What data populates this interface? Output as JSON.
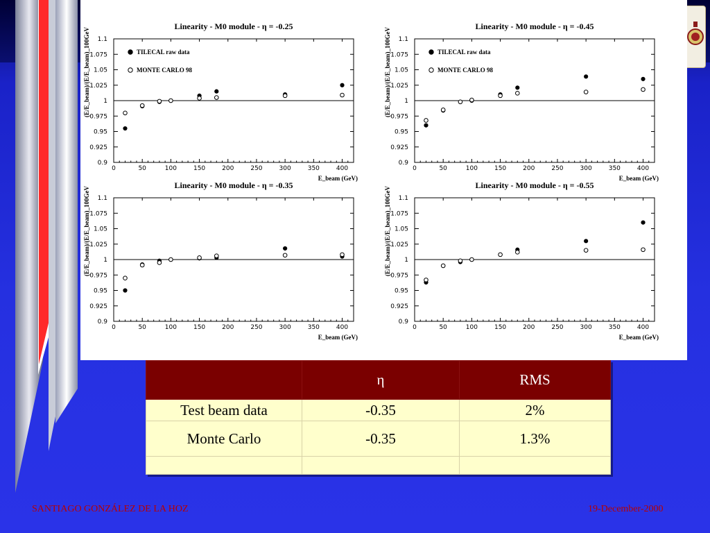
{
  "slide": {
    "footer_left": "SANTIAGO GONZÁLEZ DE LA HOZ",
    "footer_right": "19-December-2000",
    "accent_colors": {
      "background": "#2530e0",
      "table_header": "#7a0000",
      "table_body": "#ffffcc",
      "footer_text": "#b80000"
    },
    "logo_icon": "university-seal-icon"
  },
  "table": {
    "headers": [
      "",
      "η",
      "RMS"
    ],
    "rows": [
      [
        "Test beam data",
        "-0.35",
        "2%"
      ],
      [
        "Monte Carlo",
        "-0.35",
        "1.3%"
      ],
      [
        "",
        "",
        ""
      ]
    ]
  },
  "chart_data": [
    {
      "type": "scatter",
      "title": "Linearity - M0 module - η = -0.25",
      "xlabel": "E_beam (GeV)",
      "ylabel": "(E/E_beam)/(E/E_beam)_100GeV",
      "xlim": [
        0,
        420
      ],
      "ylim": [
        0.9,
        1.1
      ],
      "xticks": [
        0,
        50,
        100,
        150,
        200,
        250,
        300,
        350,
        400
      ],
      "yticks": [
        0.9,
        0.925,
        0.95,
        0.975,
        1,
        1.025,
        1.05,
        1.075,
        1.1
      ],
      "reference_line": 1,
      "legend_position": "top-left",
      "series": [
        {
          "name": "TILECAL raw data",
          "marker": "filled-circle",
          "x": [
            20,
            50,
            80,
            100,
            150,
            180,
            300,
            400
          ],
          "y": [
            0.955,
            0.991,
            0.998,
            1.0,
            1.008,
            1.015,
            1.01,
            1.025
          ]
        },
        {
          "name": "MONTE CARLO 98",
          "marker": "open-circle",
          "x": [
            20,
            50,
            80,
            100,
            150,
            180,
            300,
            400
          ],
          "y": [
            0.98,
            0.992,
            0.999,
            1.0,
            1.004,
            1.005,
            1.008,
            1.009
          ]
        }
      ]
    },
    {
      "type": "scatter",
      "title": "Linearity - M0 module - η = -0.45",
      "xlabel": "E_beam (GeV)",
      "ylabel": "(E/E_beam)/(E/E_beam)_100GeV",
      "xlim": [
        0,
        420
      ],
      "ylim": [
        0.9,
        1.1
      ],
      "xticks": [
        0,
        50,
        100,
        150,
        200,
        250,
        300,
        350,
        400
      ],
      "yticks": [
        0.9,
        0.925,
        0.95,
        0.975,
        1,
        1.025,
        1.05,
        1.075,
        1.1
      ],
      "reference_line": 1,
      "legend_position": "top-left",
      "series": [
        {
          "name": "TILECAL raw data",
          "marker": "filled-circle",
          "x": [
            20,
            50,
            80,
            100,
            150,
            180,
            300,
            400
          ],
          "y": [
            0.96,
            0.984,
            0.998,
            1.0,
            1.01,
            1.021,
            1.039,
            1.035
          ]
        },
        {
          "name": "MONTE CARLO 98",
          "marker": "open-circle",
          "x": [
            20,
            50,
            80,
            100,
            150,
            180,
            300,
            400
          ],
          "y": [
            0.968,
            0.985,
            0.998,
            1.001,
            1.008,
            1.012,
            1.014,
            1.018
          ]
        }
      ]
    },
    {
      "type": "scatter",
      "title": "Linearity - M0 module - η = -0.35",
      "xlabel": "E_beam (GeV)",
      "ylabel": "(E/E_beam)/(E/E_beam)_100GeV",
      "xlim": [
        0,
        420
      ],
      "ylim": [
        0.9,
        1.1
      ],
      "xticks": [
        0,
        50,
        100,
        150,
        200,
        250,
        300,
        350,
        400
      ],
      "yticks": [
        0.9,
        0.925,
        0.95,
        0.975,
        1,
        1.025,
        1.05,
        1.075,
        1.1
      ],
      "reference_line": 1,
      "series": [
        {
          "name": "TILECAL raw data",
          "marker": "filled-circle",
          "x": [
            20,
            50,
            80,
            100,
            150,
            180,
            300,
            400
          ],
          "y": [
            0.95,
            0.992,
            0.998,
            1.0,
            1.002,
            1.003,
            1.018,
            1.005
          ]
        },
        {
          "name": "MONTE CARLO 98",
          "marker": "open-circle",
          "x": [
            20,
            50,
            80,
            100,
            150,
            180,
            300,
            400
          ],
          "y": [
            0.97,
            0.991,
            0.995,
            1.0,
            1.003,
            1.006,
            1.007,
            1.008
          ]
        }
      ]
    },
    {
      "type": "scatter",
      "title": "Linearity - M0 module - η = -0.55",
      "xlabel": "E_beam (GeV)",
      "ylabel": "(E/E_beam)/(E/E_beam)_100GeV",
      "xlim": [
        0,
        420
      ],
      "ylim": [
        0.9,
        1.1
      ],
      "xticks": [
        0,
        50,
        100,
        150,
        200,
        250,
        300,
        350,
        400
      ],
      "yticks": [
        0.9,
        0.925,
        0.95,
        0.975,
        1,
        1.025,
        1.05,
        1.075,
        1.1
      ],
      "reference_line": 1,
      "series": [
        {
          "name": "TILECAL raw data",
          "marker": "filled-circle",
          "x": [
            20,
            50,
            80,
            100,
            150,
            180,
            300,
            400
          ],
          "y": [
            0.963,
            0.99,
            0.996,
            1.0,
            1.008,
            1.016,
            1.03,
            1.06
          ]
        },
        {
          "name": "MONTE CARLO 98",
          "marker": "open-circle",
          "x": [
            20,
            50,
            80,
            100,
            150,
            180,
            300,
            400
          ],
          "y": [
            0.967,
            0.99,
            0.998,
            1.0,
            1.008,
            1.012,
            1.015,
            1.016
          ]
        }
      ]
    }
  ]
}
